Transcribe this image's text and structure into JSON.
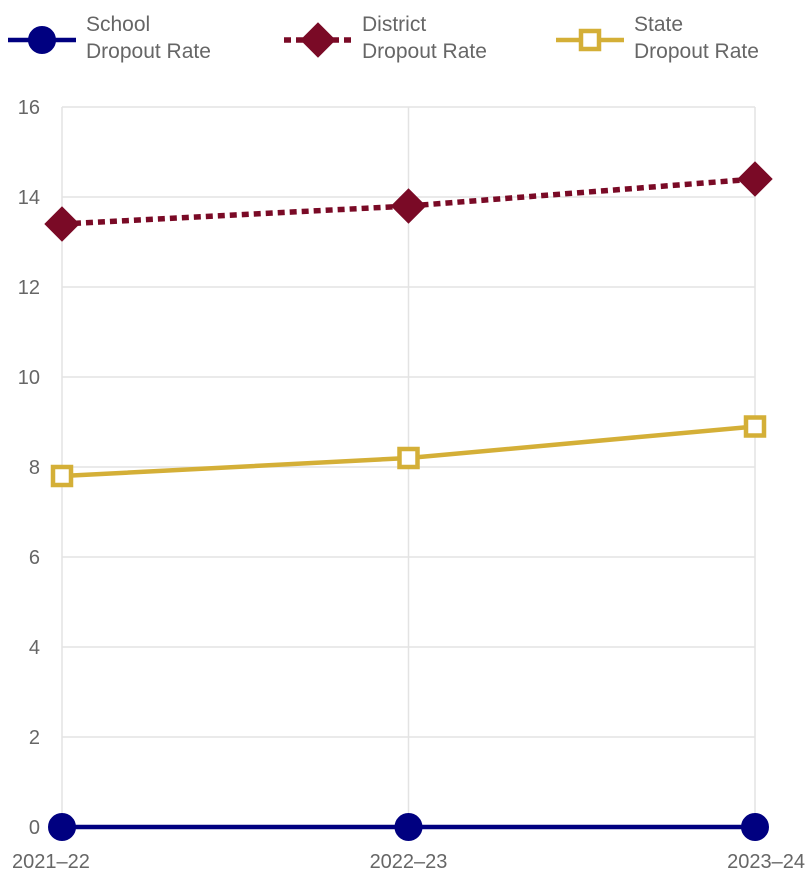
{
  "chart_data": {
    "type": "line",
    "categories": [
      "2021–22",
      "2022–23",
      "2023–24"
    ],
    "ylim": [
      0,
      16
    ],
    "yticks": [
      0,
      2,
      4,
      6,
      8,
      10,
      12,
      14,
      16
    ],
    "grid": true,
    "legend_position": "top",
    "series": [
      {
        "name": [
          "School",
          "Dropout Rate"
        ],
        "values": [
          0,
          0,
          0
        ],
        "color": "#000080",
        "marker": "circle",
        "line_style": "solid"
      },
      {
        "name": [
          "District",
          "Dropout Rate"
        ],
        "values": [
          13.4,
          13.8,
          14.4
        ],
        "color": "#7a0a26",
        "marker": "diamond",
        "line_style": "dotted"
      },
      {
        "name": [
          "State",
          "Dropout Rate"
        ],
        "values": [
          7.8,
          8.2,
          8.9
        ],
        "color": "#d4af37",
        "marker": "square-open",
        "line_style": "solid"
      }
    ]
  }
}
